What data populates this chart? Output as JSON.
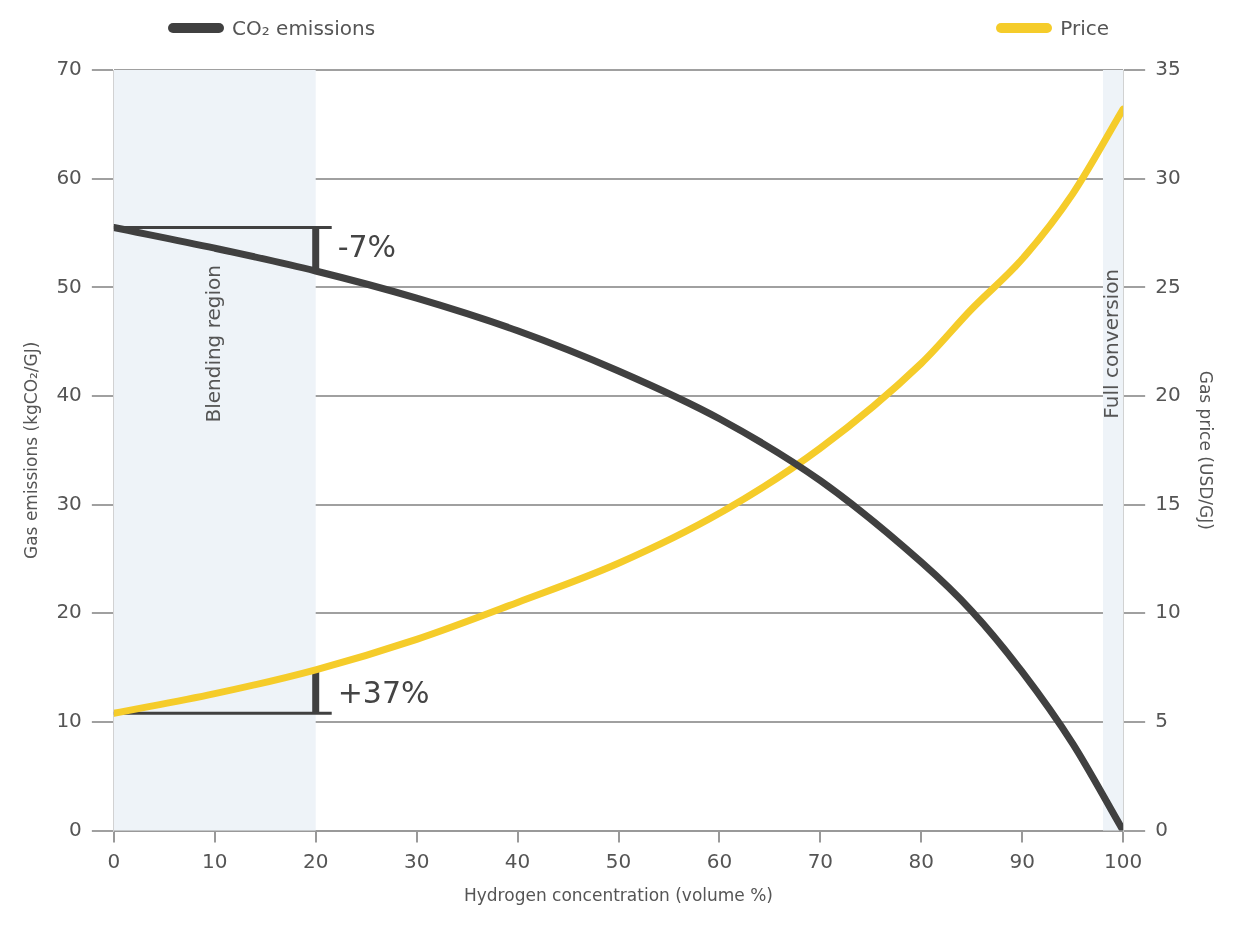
{
  "chart_data": {
    "type": "line",
    "xlabel": "Hydrogen concentration (volume %)",
    "ylabel": "Gas emissions (kgCO₂/GJ)",
    "y2label": "Gas price (USD/GJ)",
    "x": [
      0,
      10,
      20,
      30,
      40,
      50,
      60,
      70,
      80,
      85,
      90,
      95,
      100
    ],
    "series": [
      {
        "name": "CO₂ emissions",
        "color": "#404040",
        "values": [
          55.5,
          53.6,
          51.5,
          49,
          46,
          42.3,
          37.9,
          32.2,
          24.7,
          20.2,
          14.6,
          8,
          0
        ]
      },
      {
        "name": "Price",
        "color": "#f5cc2a",
        "axis": "y2",
        "values": [
          5.4,
          6.3,
          7.4,
          8.8,
          10.5,
          12.3,
          14.6,
          17.6,
          21.5,
          24,
          26.3,
          29.3,
          33.2
        ]
      }
    ],
    "xlim": [
      0,
      100
    ],
    "xticks": [
      0,
      10,
      20,
      30,
      40,
      50,
      60,
      70,
      80,
      90,
      100
    ],
    "ylim": [
      0,
      70
    ],
    "yticks": [
      0,
      10,
      20,
      30,
      40,
      50,
      60,
      70
    ],
    "y2lim": [
      0,
      35
    ],
    "y2ticks": [
      0,
      5,
      10,
      15,
      20,
      25,
      30,
      35
    ],
    "bands": [
      {
        "axis": "x",
        "from": 0,
        "to": 20,
        "label": "Blending region",
        "color": "#eef3f8"
      },
      {
        "axis": "x",
        "from": 98,
        "to": 100,
        "label": "Full conversion",
        "color": "#eef3f8"
      }
    ],
    "annotations": [
      {
        "text": "-7%",
        "x": 20,
        "y": 53.5
      },
      {
        "text": "+37%",
        "x": 20,
        "y": 12.5
      }
    ],
    "grid": "y",
    "legend": "top",
    "marker": "none",
    "line_style": "solid"
  }
}
